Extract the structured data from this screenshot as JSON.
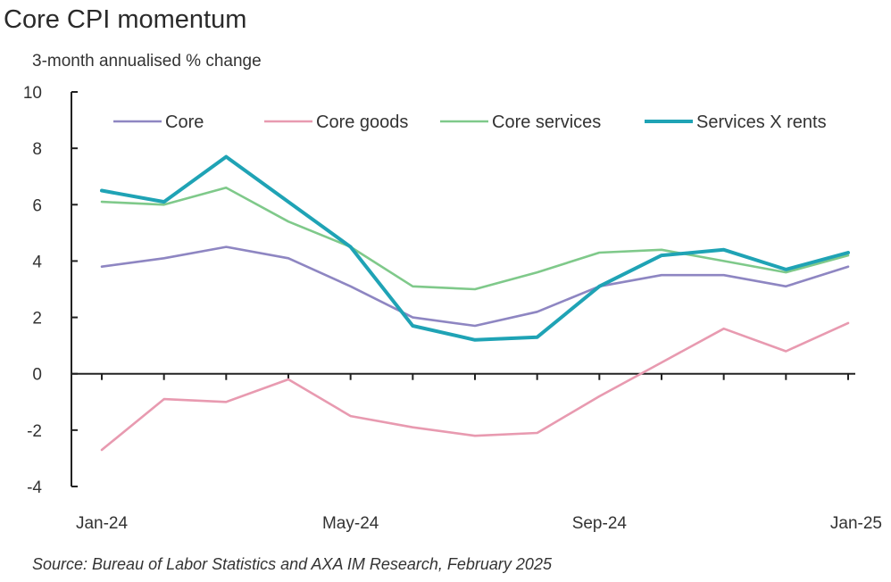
{
  "chart_data": {
    "type": "line",
    "title": "Core CPI momentum",
    "subtitle": "3-month annualised  % change",
    "source": "Source: Bureau of Labor Statistics and AXA IM Research, February 2025",
    "x": [
      "Jan-24",
      "Feb-24",
      "Mar-24",
      "Apr-24",
      "May-24",
      "Jun-24",
      "Jul-24",
      "Aug-24",
      "Sep-24",
      "Oct-24",
      "Nov-24",
      "Dec-24",
      "Jan-25"
    ],
    "x_tick_labels": [
      "Jan-24",
      "May-24",
      "Sep-24",
      "Jan-25"
    ],
    "y_ticks": [
      10,
      8,
      6,
      4,
      2,
      0,
      -2,
      -4
    ],
    "ylim": [
      -4,
      10
    ],
    "grid": false,
    "legend_position": "top",
    "series": [
      {
        "name": "Core",
        "color": "#8e86c2",
        "values": [
          3.8,
          4.1,
          4.5,
          4.1,
          3.1,
          2.0,
          1.7,
          2.2,
          3.1,
          3.5,
          3.5,
          3.1,
          3.8
        ]
      },
      {
        "name": "Core goods",
        "color": "#e89ab0",
        "values": [
          -2.7,
          -0.9,
          -1.0,
          -0.2,
          -1.5,
          -1.9,
          -2.2,
          -2.1,
          -0.8,
          0.4,
          1.6,
          0.8,
          1.8
        ]
      },
      {
        "name": "Core services",
        "color": "#7fc98a",
        "values": [
          6.1,
          6.0,
          6.6,
          5.4,
          4.5,
          3.1,
          3.0,
          3.6,
          4.3,
          4.4,
          4.0,
          3.6,
          4.2
        ]
      },
      {
        "name": "Services X rents",
        "color": "#1fa3b5",
        "values": [
          6.5,
          6.1,
          7.7,
          6.1,
          4.5,
          1.7,
          1.2,
          1.3,
          3.1,
          4.2,
          4.4,
          3.7,
          4.3
        ]
      }
    ]
  }
}
